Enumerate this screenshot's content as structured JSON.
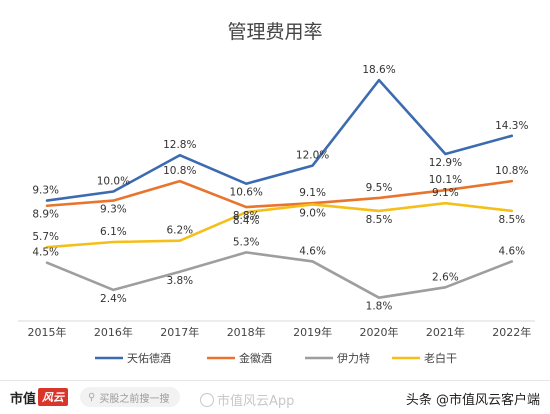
{
  "chart_data": {
    "type": "line",
    "title": "管理费用率",
    "categories": [
      "2015年",
      "2016年",
      "2017年",
      "2018年",
      "2019年",
      "2020年",
      "2021年",
      "2022年"
    ],
    "series": [
      {
        "name": "天佑德酒",
        "color": "#3c6bb0",
        "values": [
          9.3,
          10.0,
          12.8,
          10.6,
          12.0,
          18.6,
          12.9,
          14.3
        ],
        "labels": [
          "9.3%",
          "10.0%",
          "12.8%",
          "10.6%",
          "12.0%",
          "18.6%",
          "12.9%",
          "14.3%"
        ]
      },
      {
        "name": "金徽酒",
        "color": "#e8742e",
        "values": [
          8.9,
          9.3,
          10.8,
          8.8,
          9.1,
          9.5,
          10.1,
          10.8
        ],
        "labels": [
          "8.9%",
          "9.3%",
          "10.8%",
          "8.8%",
          "9.1%",
          "9.5%",
          "10.1%",
          "10.8%"
        ]
      },
      {
        "name": "伊力特",
        "color": "#9e9e9e",
        "values": [
          4.5,
          2.4,
          3.8,
          5.3,
          4.6,
          1.8,
          2.6,
          4.6
        ],
        "labels": [
          "4.5%",
          "2.4%",
          "3.8%",
          "5.3%",
          "4.6%",
          "1.8%",
          "2.6%",
          "4.6%"
        ]
      },
      {
        "name": "老白干",
        "color": "#f5bf1a",
        "values": [
          5.7,
          6.1,
          6.2,
          8.4,
          9.0,
          8.5,
          9.1,
          8.5
        ],
        "labels": [
          "5.7%",
          "6.1%",
          "6.2%",
          "8.4%",
          "9.0%",
          "8.5%",
          "9.1%",
          "8.5%"
        ]
      }
    ],
    "ylim": [
      0,
      20
    ],
    "grid": false,
    "legend": "bottom"
  },
  "footer": {
    "logo_text": "市值",
    "logo_badge": "风云",
    "search_placeholder": "买股之前搜一搜",
    "app_label": "市值风云App",
    "source": "头条 @市值风云客户端"
  },
  "colors": {
    "footer_accent": "#d9362b"
  }
}
